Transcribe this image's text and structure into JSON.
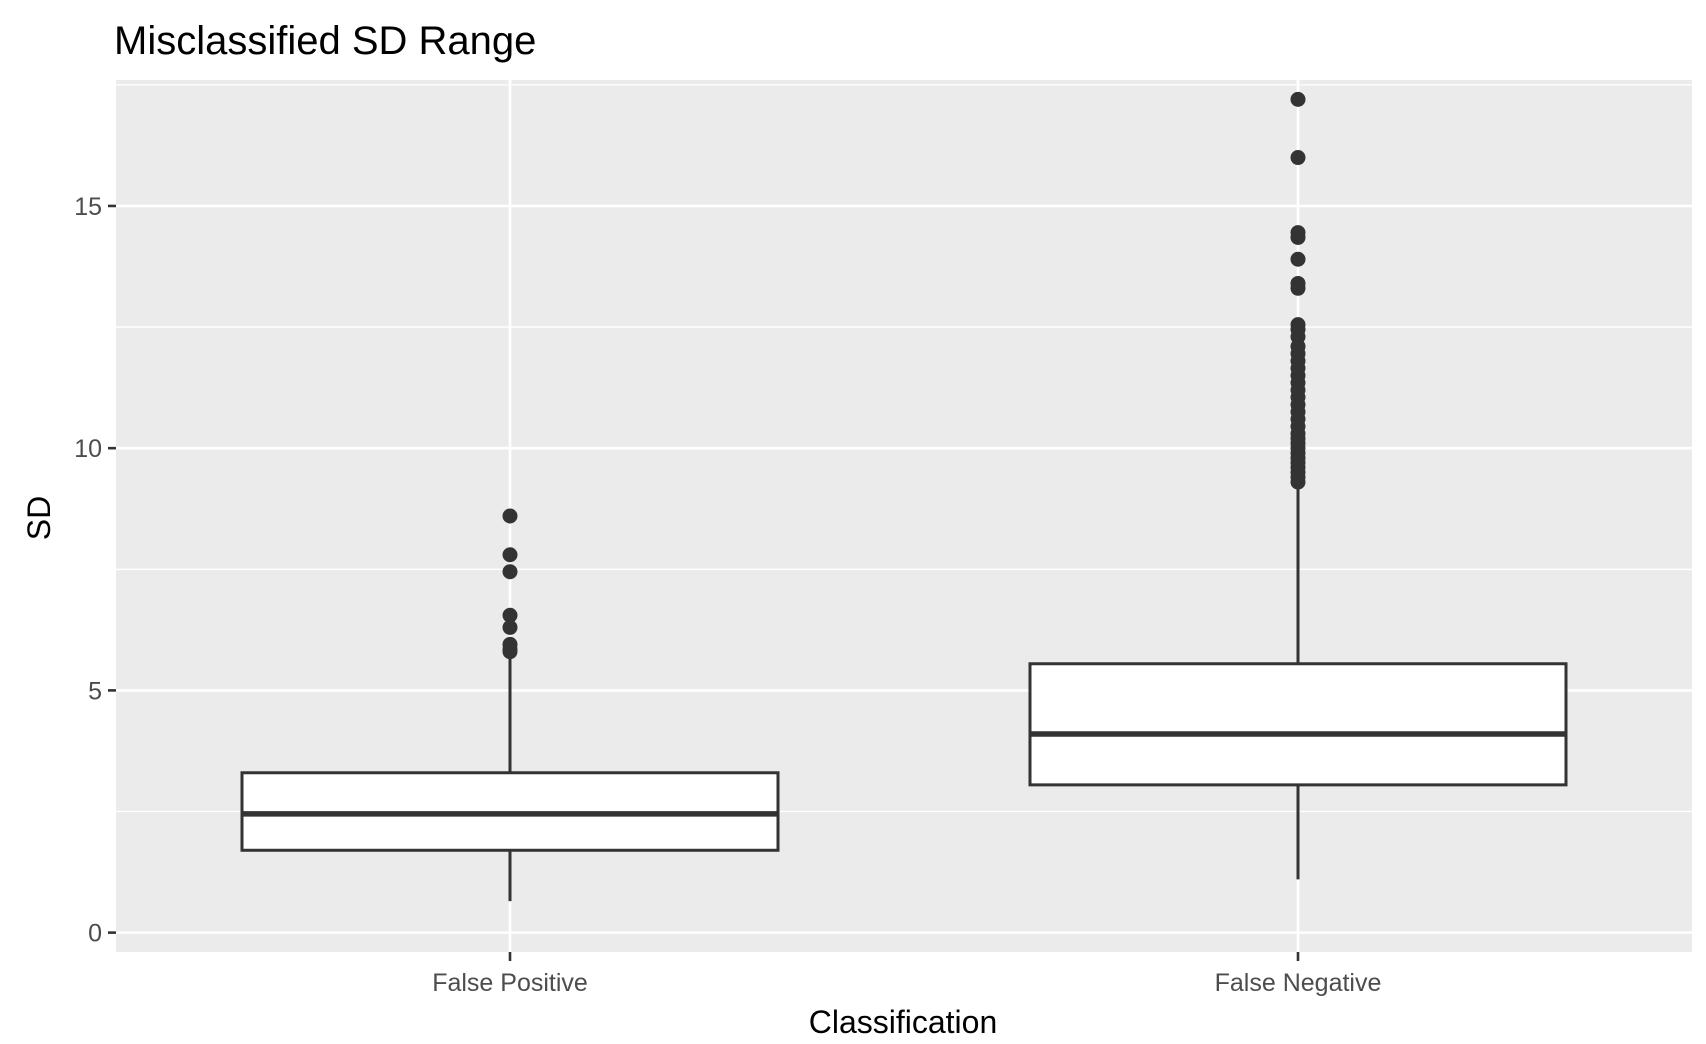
{
  "chart_data": {
    "type": "boxplot",
    "title": "Misclassified SD Range",
    "xlabel": "Classification",
    "ylabel": "SD",
    "categories": [
      "False Positive",
      "False Negative"
    ],
    "ylim": [
      -0.4,
      17.6
    ],
    "y_ticks": [
      0,
      5,
      10,
      15
    ],
    "y_tick_labels": [
      "0",
      "5",
      "10",
      "15"
    ],
    "grid": true,
    "boxes": [
      {
        "category": "False Positive",
        "whisker_low": 0.65,
        "q1": 1.7,
        "median": 2.45,
        "q3": 3.3,
        "whisker_high": 5.7,
        "outliers": [
          5.8,
          5.85,
          5.95,
          6.3,
          6.55,
          7.45,
          7.8,
          8.6
        ]
      },
      {
        "category": "False Negative",
        "whisker_low": 1.1,
        "q1": 3.05,
        "median": 4.1,
        "q3": 5.55,
        "whisker_high": 9.2,
        "outliers": [
          9.3,
          9.4,
          9.5,
          9.6,
          9.7,
          9.8,
          9.9,
          10.0,
          10.1,
          10.2,
          10.3,
          10.45,
          10.6,
          10.75,
          10.9,
          11.05,
          11.2,
          11.35,
          11.5,
          11.65,
          11.8,
          11.95,
          12.1,
          12.3,
          12.45,
          12.55,
          13.3,
          13.4,
          13.9,
          14.35,
          14.45,
          16.0,
          17.2
        ]
      }
    ],
    "colors": {
      "panel_background": "#ebebeb",
      "grid_line": "#ffffff",
      "box_fill": "#ffffff",
      "box_stroke": "#333333",
      "tick_label": "#4d4d4d",
      "axis_tick": "#333333"
    }
  }
}
